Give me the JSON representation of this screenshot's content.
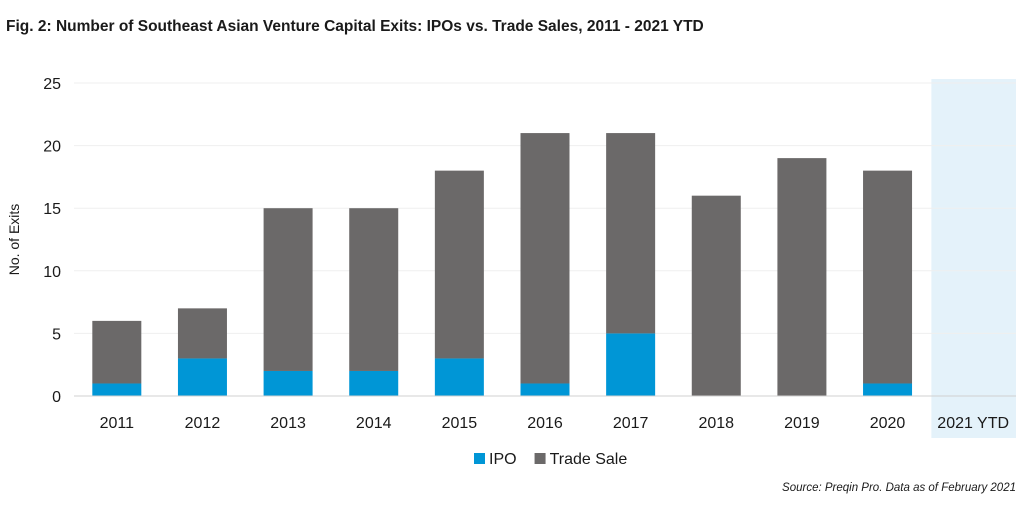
{
  "chart_data": {
    "type": "bar",
    "stacked": true,
    "title": "Fig. 2: Number of Southeast Asian Venture Capital Exits: IPOs vs. Trade Sales, 2011 - 2021 YTD",
    "xlabel": "",
    "ylabel": "No. of Exits",
    "ylim": [
      0,
      25
    ],
    "yticks": [
      0,
      5,
      10,
      15,
      20,
      25
    ],
    "categories": [
      "2011",
      "2012",
      "2013",
      "2014",
      "2015",
      "2016",
      "2017",
      "2018",
      "2019",
      "2020",
      "2021 YTD"
    ],
    "highlighted_category": "2021 YTD",
    "series": [
      {
        "name": "IPO",
        "color": "#0096d6",
        "values": [
          1,
          3,
          2,
          2,
          3,
          1,
          5,
          0,
          0,
          1,
          0
        ]
      },
      {
        "name": "Trade Sale",
        "color": "#6b6969",
        "values": [
          5,
          4,
          13,
          13,
          15,
          20,
          16,
          16,
          19,
          17,
          0
        ]
      }
    ],
    "grid": true,
    "legend_position": "bottom-center",
    "source": "Source: Preqin Pro. Data as of February 2021"
  },
  "colors": {
    "highlight_band": "#e4f2fa",
    "gridline": "#efefef",
    "axis": "#d0d0d0"
  }
}
